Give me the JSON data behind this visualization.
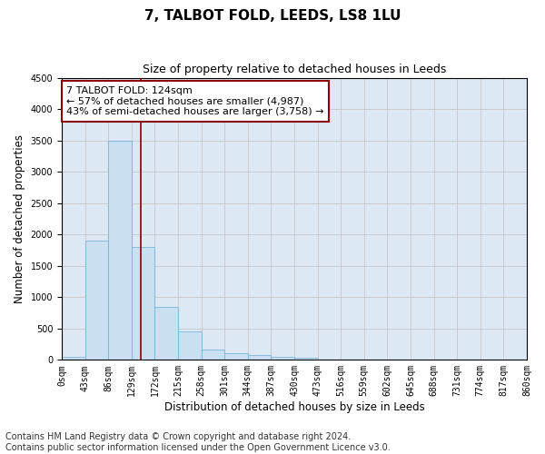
{
  "title": "7, TALBOT FOLD, LEEDS, LS8 1LU",
  "subtitle": "Size of property relative to detached houses in Leeds",
  "xlabel": "Distribution of detached houses by size in Leeds",
  "ylabel": "Number of detached properties",
  "bar_values": [
    50,
    1900,
    3500,
    1800,
    850,
    460,
    160,
    100,
    70,
    55,
    40,
    0,
    0,
    0,
    0,
    0,
    0,
    0,
    0,
    0
  ],
  "bar_color": "#c9dff2",
  "bar_edge_color": "#6aaed6",
  "x_labels": [
    "0sqm",
    "43sqm",
    "86sqm",
    "129sqm",
    "172sqm",
    "215sqm",
    "258sqm",
    "301sqm",
    "344sqm",
    "387sqm",
    "430sqm",
    "473sqm",
    "516sqm",
    "559sqm",
    "602sqm",
    "645sqm",
    "688sqm",
    "731sqm",
    "774sqm",
    "817sqm",
    "860sqm"
  ],
  "ylim": [
    0,
    4500
  ],
  "yticks": [
    0,
    500,
    1000,
    1500,
    2000,
    2500,
    3000,
    3500,
    4000,
    4500
  ],
  "vline_x": 2.88,
  "vline_color": "#8b0000",
  "annotation_text": "7 TALBOT FOLD: 124sqm\n← 57% of detached houses are smaller (4,987)\n43% of semi-detached houses are larger (3,758) →",
  "annotation_box_color": "#ffffff",
  "annotation_box_edge": "#8b0000",
  "footer_line1": "Contains HM Land Registry data © Crown copyright and database right 2024.",
  "footer_line2": "Contains public sector information licensed under the Open Government Licence v3.0.",
  "background_color": "#ffffff",
  "plot_bg_color": "#dce9f5",
  "grid_color": "#c0c0c0",
  "title_fontsize": 11,
  "subtitle_fontsize": 9,
  "axis_label_fontsize": 8.5,
  "tick_fontsize": 7,
  "annotation_fontsize": 8,
  "footer_fontsize": 7
}
